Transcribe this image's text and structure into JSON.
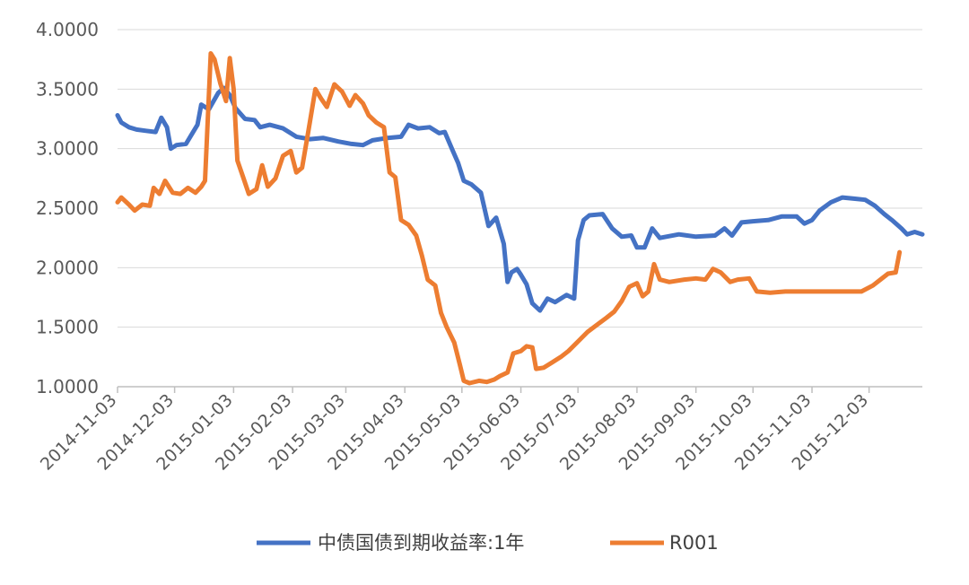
{
  "chart_data": {
    "type": "line",
    "title": "",
    "xlabel": "",
    "ylabel": "",
    "x_range": [
      "2014-11-03",
      "2015-12-31"
    ],
    "ylim": [
      1.0,
      4.0
    ],
    "yticks": [
      "1.0000",
      "1.5000",
      "2.0000",
      "2.5000",
      "3.0000",
      "3.5000",
      "4.0000"
    ],
    "xticks": [
      "2014-11-03",
      "2014-12-03",
      "2015-01-03",
      "2015-02-03",
      "2015-03-03",
      "2015-04-03",
      "2015-05-03",
      "2015-06-03",
      "2015-07-03",
      "2015-08-03",
      "2015-09-03",
      "2015-10-03",
      "2015-11-03",
      "2015-12-03"
    ],
    "grid": "horizontal",
    "legend_position": "bottom",
    "series": [
      {
        "name": "中债国债到期收益率:1年",
        "color": "#4472C4",
        "points": [
          [
            "2014-11-03",
            3.28
          ],
          [
            "2014-11-05",
            3.22
          ],
          [
            "2014-11-09",
            3.18
          ],
          [
            "2014-11-13",
            3.16
          ],
          [
            "2014-11-18",
            3.15
          ],
          [
            "2014-11-23",
            3.14
          ],
          [
            "2014-11-26",
            3.26
          ],
          [
            "2014-11-29",
            3.18
          ],
          [
            "2014-12-01",
            3.0
          ],
          [
            "2014-12-04",
            3.03
          ],
          [
            "2014-12-09",
            3.04
          ],
          [
            "2014-12-12",
            3.12
          ],
          [
            "2014-12-15",
            3.2
          ],
          [
            "2014-12-17",
            3.37
          ],
          [
            "2014-12-21",
            3.33
          ],
          [
            "2014-12-26",
            3.47
          ],
          [
            "2014-12-29",
            3.51
          ],
          [
            "2015-01-01",
            3.45
          ],
          [
            "2015-01-04",
            3.34
          ],
          [
            "2015-01-09",
            3.25
          ],
          [
            "2015-01-14",
            3.24
          ],
          [
            "2015-01-17",
            3.18
          ],
          [
            "2015-01-22",
            3.2
          ],
          [
            "2015-01-29",
            3.17
          ],
          [
            "2015-02-05",
            3.1
          ],
          [
            "2015-02-12",
            3.08
          ],
          [
            "2015-02-19",
            3.09
          ],
          [
            "2015-02-27",
            3.06
          ],
          [
            "2015-03-06",
            3.04
          ],
          [
            "2015-03-12",
            3.03
          ],
          [
            "2015-03-17",
            3.07
          ],
          [
            "2015-03-25",
            3.09
          ],
          [
            "2015-04-01",
            3.1
          ],
          [
            "2015-04-05",
            3.2
          ],
          [
            "2015-04-10",
            3.17
          ],
          [
            "2015-04-16",
            3.18
          ],
          [
            "2015-04-21",
            3.13
          ],
          [
            "2015-04-24",
            3.14
          ],
          [
            "2015-04-28",
            2.99
          ],
          [
            "2015-05-01",
            2.88
          ],
          [
            "2015-05-04",
            2.73
          ],
          [
            "2015-05-08",
            2.7
          ],
          [
            "2015-05-13",
            2.63
          ],
          [
            "2015-05-17",
            2.35
          ],
          [
            "2015-05-21",
            2.42
          ],
          [
            "2015-05-25",
            2.2
          ],
          [
            "2015-05-27",
            1.88
          ],
          [
            "2015-05-29",
            1.96
          ],
          [
            "2015-06-01",
            1.99
          ],
          [
            "2015-06-03",
            1.94
          ],
          [
            "2015-06-06",
            1.86
          ],
          [
            "2015-06-09",
            1.7
          ],
          [
            "2015-06-13",
            1.64
          ],
          [
            "2015-06-17",
            1.74
          ],
          [
            "2015-06-21",
            1.71
          ],
          [
            "2015-06-24",
            1.74
          ],
          [
            "2015-06-27",
            1.77
          ],
          [
            "2015-07-01",
            1.74
          ],
          [
            "2015-07-03",
            2.23
          ],
          [
            "2015-07-06",
            2.4
          ],
          [
            "2015-07-09",
            2.44
          ],
          [
            "2015-07-16",
            2.45
          ],
          [
            "2015-07-21",
            2.33
          ],
          [
            "2015-07-26",
            2.26
          ],
          [
            "2015-07-31",
            2.27
          ],
          [
            "2015-08-03",
            2.17
          ],
          [
            "2015-08-07",
            2.17
          ],
          [
            "2015-08-11",
            2.33
          ],
          [
            "2015-08-15",
            2.25
          ],
          [
            "2015-08-25",
            2.28
          ],
          [
            "2015-09-03",
            2.26
          ],
          [
            "2015-09-13",
            2.27
          ],
          [
            "2015-09-18",
            2.33
          ],
          [
            "2015-09-22",
            2.27
          ],
          [
            "2015-09-27",
            2.38
          ],
          [
            "2015-10-03",
            2.39
          ],
          [
            "2015-10-11",
            2.4
          ],
          [
            "2015-10-18",
            2.43
          ],
          [
            "2015-10-26",
            2.43
          ],
          [
            "2015-10-30",
            2.37
          ],
          [
            "2015-11-03",
            2.4
          ],
          [
            "2015-11-07",
            2.48
          ],
          [
            "2015-11-13",
            2.55
          ],
          [
            "2015-11-19",
            2.59
          ],
          [
            "2015-11-25",
            2.58
          ],
          [
            "2015-12-01",
            2.57
          ],
          [
            "2015-12-06",
            2.52
          ],
          [
            "2015-12-11",
            2.45
          ],
          [
            "2015-12-15",
            2.4
          ],
          [
            "2015-12-20",
            2.33
          ],
          [
            "2015-12-23",
            2.28
          ],
          [
            "2015-12-27",
            2.3
          ],
          [
            "2015-12-31",
            2.28
          ]
        ]
      },
      {
        "name": "R001",
        "color": "#ED7D31",
        "points": [
          [
            "2014-11-03",
            2.55
          ],
          [
            "2014-11-05",
            2.59
          ],
          [
            "2014-11-09",
            2.53
          ],
          [
            "2014-11-12",
            2.48
          ],
          [
            "2014-11-16",
            2.53
          ],
          [
            "2014-11-20",
            2.52
          ],
          [
            "2014-11-22",
            2.67
          ],
          [
            "2014-11-25",
            2.62
          ],
          [
            "2014-11-28",
            2.73
          ],
          [
            "2014-12-02",
            2.63
          ],
          [
            "2014-12-06",
            2.62
          ],
          [
            "2014-12-10",
            2.67
          ],
          [
            "2014-12-14",
            2.63
          ],
          [
            "2014-12-17",
            2.68
          ],
          [
            "2014-12-19",
            2.73
          ],
          [
            "2014-12-22",
            3.8
          ],
          [
            "2014-12-24",
            3.75
          ],
          [
            "2014-12-27",
            3.55
          ],
          [
            "2014-12-30",
            3.4
          ],
          [
            "2015-01-01",
            3.76
          ],
          [
            "2015-01-03",
            3.5
          ],
          [
            "2015-01-05",
            2.9
          ],
          [
            "2015-01-08",
            2.76
          ],
          [
            "2015-01-11",
            2.62
          ],
          [
            "2015-01-15",
            2.66
          ],
          [
            "2015-01-18",
            2.86
          ],
          [
            "2015-01-21",
            2.68
          ],
          [
            "2015-01-25",
            2.75
          ],
          [
            "2015-01-29",
            2.94
          ],
          [
            "2015-02-02",
            2.98
          ],
          [
            "2015-02-05",
            2.8
          ],
          [
            "2015-02-08",
            2.84
          ],
          [
            "2015-02-11",
            3.12
          ],
          [
            "2015-02-15",
            3.5
          ],
          [
            "2015-02-18",
            3.42
          ],
          [
            "2015-02-21",
            3.35
          ],
          [
            "2015-02-25",
            3.54
          ],
          [
            "2015-03-01",
            3.48
          ],
          [
            "2015-03-05",
            3.36
          ],
          [
            "2015-03-08",
            3.45
          ],
          [
            "2015-03-12",
            3.38
          ],
          [
            "2015-03-15",
            3.28
          ],
          [
            "2015-03-19",
            3.22
          ],
          [
            "2015-03-23",
            3.18
          ],
          [
            "2015-03-26",
            2.8
          ],
          [
            "2015-03-29",
            2.76
          ],
          [
            "2015-04-01",
            2.4
          ],
          [
            "2015-04-05",
            2.36
          ],
          [
            "2015-04-09",
            2.27
          ],
          [
            "2015-04-12",
            2.1
          ],
          [
            "2015-04-15",
            1.9
          ],
          [
            "2015-04-19",
            1.85
          ],
          [
            "2015-04-22",
            1.62
          ],
          [
            "2015-04-25",
            1.5
          ],
          [
            "2015-04-29",
            1.37
          ],
          [
            "2015-05-02",
            1.18
          ],
          [
            "2015-05-04",
            1.05
          ],
          [
            "2015-05-07",
            1.03
          ],
          [
            "2015-05-12",
            1.05
          ],
          [
            "2015-05-16",
            1.04
          ],
          [
            "2015-05-20",
            1.06
          ],
          [
            "2015-05-23",
            1.09
          ],
          [
            "2015-05-27",
            1.12
          ],
          [
            "2015-05-30",
            1.28
          ],
          [
            "2015-06-03",
            1.3
          ],
          [
            "2015-06-06",
            1.34
          ],
          [
            "2015-06-09",
            1.33
          ],
          [
            "2015-06-11",
            1.15
          ],
          [
            "2015-06-15",
            1.16
          ],
          [
            "2015-06-19",
            1.2
          ],
          [
            "2015-06-24",
            1.25
          ],
          [
            "2015-06-28",
            1.3
          ],
          [
            "2015-07-03",
            1.38
          ],
          [
            "2015-07-08",
            1.46
          ],
          [
            "2015-07-13",
            1.52
          ],
          [
            "2015-07-18",
            1.58
          ],
          [
            "2015-07-22",
            1.63
          ],
          [
            "2015-07-26",
            1.72
          ],
          [
            "2015-07-30",
            1.84
          ],
          [
            "2015-08-03",
            1.87
          ],
          [
            "2015-08-06",
            1.76
          ],
          [
            "2015-08-09",
            1.8
          ],
          [
            "2015-08-12",
            2.03
          ],
          [
            "2015-08-15",
            1.9
          ],
          [
            "2015-08-20",
            1.88
          ],
          [
            "2015-08-28",
            1.9
          ],
          [
            "2015-09-03",
            1.91
          ],
          [
            "2015-09-08",
            1.9
          ],
          [
            "2015-09-12",
            1.99
          ],
          [
            "2015-09-16",
            1.96
          ],
          [
            "2015-09-21",
            1.88
          ],
          [
            "2015-09-25",
            1.9
          ],
          [
            "2015-10-01",
            1.91
          ],
          [
            "2015-10-05",
            1.8
          ],
          [
            "2015-10-12",
            1.79
          ],
          [
            "2015-10-20",
            1.8
          ],
          [
            "2015-10-28",
            1.8
          ],
          [
            "2015-11-05",
            1.8
          ],
          [
            "2015-11-13",
            1.8
          ],
          [
            "2015-11-21",
            1.8
          ],
          [
            "2015-11-29",
            1.8
          ],
          [
            "2015-12-05",
            1.85
          ],
          [
            "2015-12-09",
            1.9
          ],
          [
            "2015-12-13",
            1.95
          ],
          [
            "2015-12-17",
            1.96
          ],
          [
            "2015-12-19",
            2.13
          ]
        ]
      }
    ]
  }
}
